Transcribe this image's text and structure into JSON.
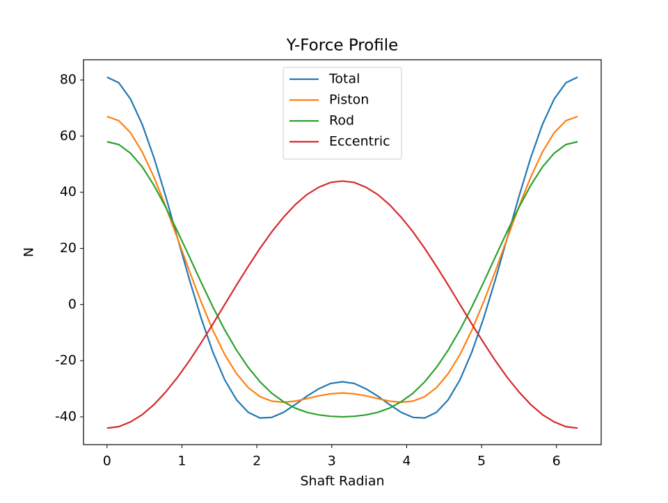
{
  "chart_data": {
    "type": "line",
    "title": "Y-Force Profile",
    "x_label": "Shaft Radian",
    "y_label": "N",
    "x": [
      0,
      0.157,
      0.314,
      0.471,
      0.628,
      0.785,
      0.942,
      1.1,
      1.257,
      1.414,
      1.571,
      1.728,
      1.885,
      2.042,
      2.199,
      2.356,
      2.513,
      2.67,
      2.827,
      2.985,
      3.142,
      3.299,
      3.456,
      3.613,
      3.77,
      3.927,
      4.084,
      4.241,
      4.398,
      4.555,
      4.712,
      4.869,
      5.027,
      5.184,
      5.341,
      5.498,
      5.655,
      5.812,
      5.969,
      6.126,
      6.283
    ],
    "series": [
      {
        "name": "Total",
        "color": "#1f77b4",
        "values": [
          81.0,
          79.0,
          73.2,
          64.1,
          52.2,
          38.4,
          23.6,
          8.9,
          -4.9,
          -17.0,
          -26.8,
          -33.9,
          -38.4,
          -40.4,
          -40.2,
          -38.4,
          -35.6,
          -32.6,
          -30.0,
          -28.1,
          -27.5,
          -28.1,
          -30.0,
          -32.6,
          -35.6,
          -38.4,
          -40.2,
          -40.4,
          -38.4,
          -33.9,
          -26.8,
          -17.0,
          -4.9,
          8.9,
          23.6,
          38.4,
          52.2,
          64.1,
          73.2,
          79.0,
          81.0
        ]
      },
      {
        "name": "Piston",
        "color": "#ff7f0e",
        "values": [
          67.0,
          65.5,
          61.2,
          54.3,
          45.3,
          34.8,
          23.5,
          11.9,
          0.9,
          -9.2,
          -17.8,
          -24.6,
          -29.6,
          -32.8,
          -34.4,
          -34.8,
          -34.4,
          -33.5,
          -32.5,
          -31.8,
          -31.5,
          -31.8,
          -32.5,
          -33.5,
          -34.4,
          -34.8,
          -34.4,
          -32.8,
          -29.6,
          -24.6,
          -17.8,
          -9.2,
          0.9,
          11.9,
          23.5,
          34.8,
          45.3,
          54.3,
          61.2,
          65.5,
          67.0
        ]
      },
      {
        "name": "Rod",
        "color": "#2ca02c",
        "values": [
          58.0,
          57.0,
          53.9,
          49.0,
          42.4,
          34.6,
          26.0,
          17.0,
          7.9,
          -0.9,
          -9.0,
          -16.2,
          -22.4,
          -27.5,
          -31.6,
          -34.6,
          -36.9,
          -38.4,
          -39.3,
          -39.8,
          -40.0,
          -39.8,
          -39.3,
          -38.4,
          -36.9,
          -34.6,
          -31.6,
          -27.5,
          -22.4,
          -16.2,
          -9.0,
          -0.9,
          7.9,
          17.0,
          26.0,
          34.6,
          42.4,
          49.0,
          53.9,
          57.0,
          58.0
        ]
      },
      {
        "name": "Eccentric",
        "color": "#d62728",
        "values": [
          -44.0,
          -43.5,
          -41.8,
          -39.2,
          -35.6,
          -31.1,
          -25.9,
          -20.0,
          -13.6,
          -6.9,
          0.0,
          6.9,
          13.6,
          20.0,
          25.9,
          31.1,
          35.6,
          39.2,
          41.8,
          43.5,
          44.0,
          43.5,
          41.8,
          39.2,
          35.6,
          31.1,
          25.9,
          20.0,
          13.6,
          6.9,
          0.0,
          -6.9,
          -13.6,
          -20.0,
          -25.9,
          -31.1,
          -35.6,
          -39.2,
          -41.8,
          -43.5,
          -44.0
        ]
      }
    ],
    "xlim": [
      -0.314,
      6.597
    ],
    "ylim": [
      -49.9,
      87.2
    ],
    "xticks": [
      0,
      1,
      2,
      3,
      4,
      5,
      6
    ],
    "yticks": [
      -40,
      -20,
      0,
      20,
      40,
      60,
      80
    ],
    "legend": "upper center",
    "grid": false
  }
}
